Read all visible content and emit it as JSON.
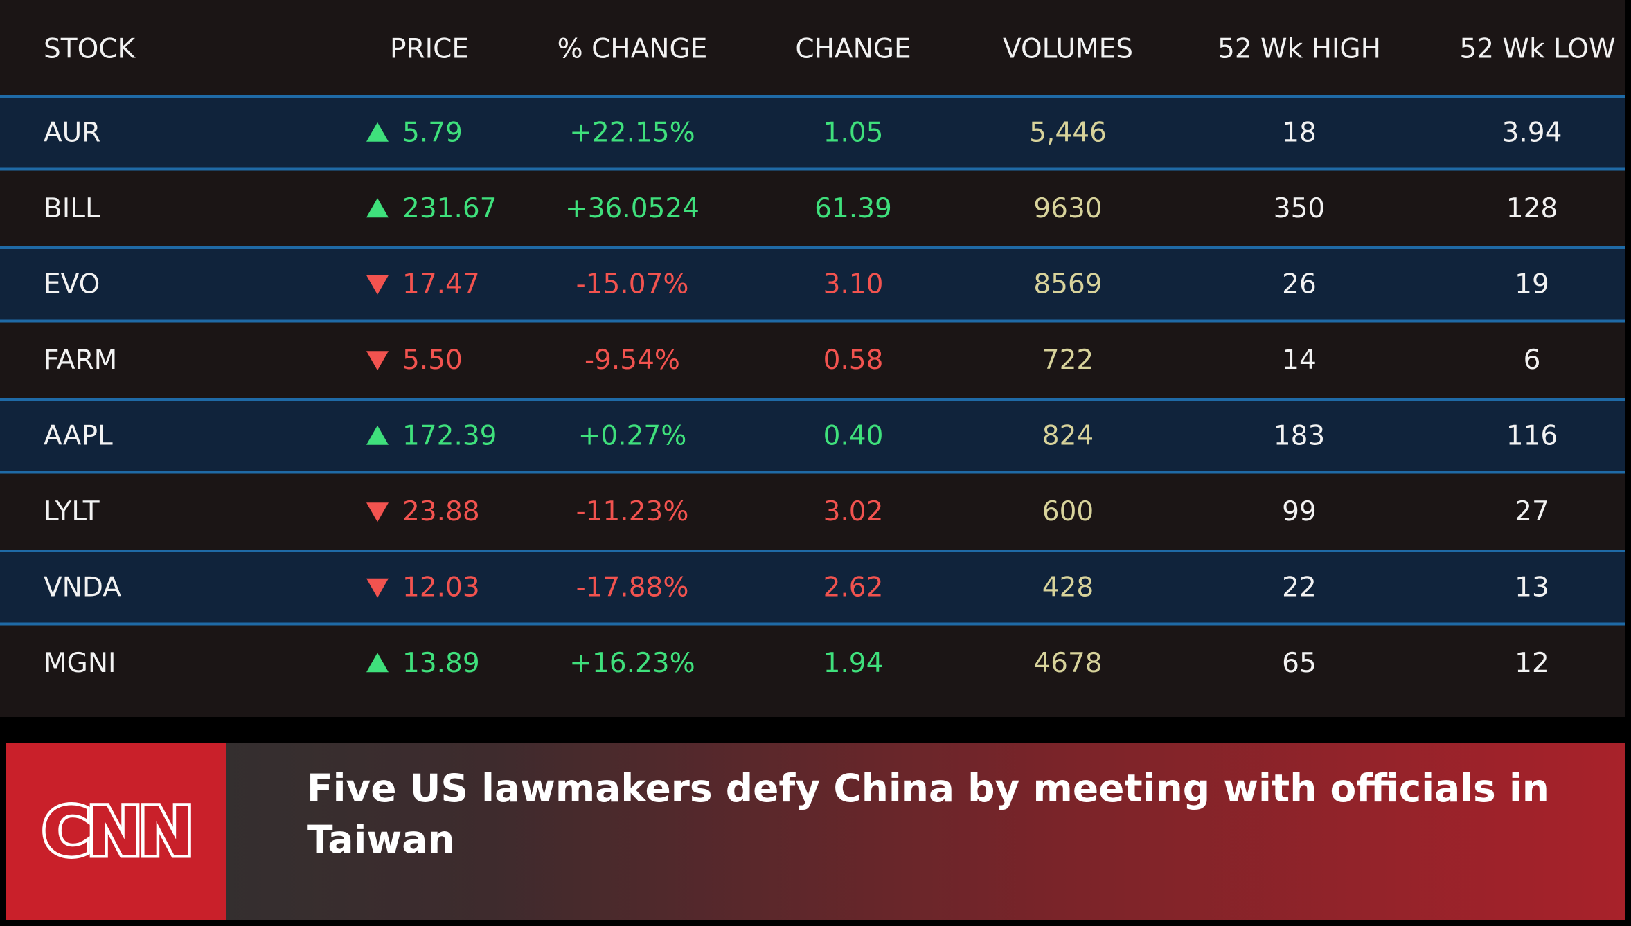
{
  "table": {
    "headers": [
      "STOCK",
      "PRICE",
      "% CHANGE",
      "CHANGE",
      "VOLUMES",
      "52 Wk HIGH",
      "52 Wk LOW"
    ],
    "rows": [
      [
        "AUR",
        "5.79",
        "+22.15%",
        "1.05",
        "5,446",
        "18",
        "3.94"
      ],
      [
        "BILL",
        "231.67",
        "+36.0524",
        "61.39",
        "9630",
        "350",
        "128"
      ],
      [
        "EVO",
        "17.47",
        "-15.07%",
        "3.10",
        "8569",
        "26",
        "19"
      ],
      [
        "FARM",
        "5.50",
        "-9.54%",
        "0.58",
        "722",
        "14",
        "6"
      ],
      [
        "AAPL",
        "172.39",
        "+0.27%",
        "0.40",
        "824",
        "183",
        "116"
      ],
      [
        "LYLT",
        "23.88",
        "-11.23%",
        "3.02",
        "600",
        "99",
        "27"
      ],
      [
        "VNDA",
        "12.03",
        "-17.88%",
        "2.62",
        "428",
        "22",
        "13"
      ],
      [
        "MGNI",
        "13.89",
        "+16.23%",
        "1.94",
        "4678",
        "65",
        "12"
      ]
    ]
  },
  "banner": {
    "logo": "CNN",
    "headline": "Five US lawmakers defy China by meeting with officials in Taiwan"
  }
}
